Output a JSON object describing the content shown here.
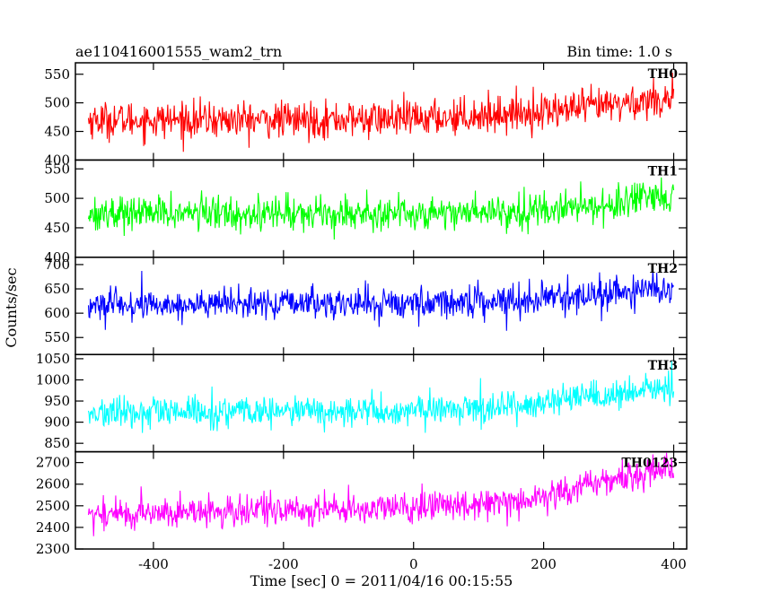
{
  "chart_data": {
    "type": "line",
    "title": "ae110416001555_wam2_trn",
    "subtitle": "Bin time: 1.0 s",
    "xlabel": "Time [sec] 0 = 2011/04/16 00:15:55",
    "ylabel": "Counts/sec",
    "xlim": [
      -520,
      420
    ],
    "x_ticks": [
      -400,
      -200,
      0,
      200,
      400
    ],
    "x_range_data": [
      -500,
      400
    ],
    "bin_time_s": 1.0,
    "grid": false,
    "panels": [
      {
        "name": "TH0",
        "color": "#ff0000",
        "ylim": [
          400,
          570
        ],
        "yticks": [
          400,
          450,
          500,
          550
        ],
        "trend": [
          [
            -500,
            470
          ],
          [
            -200,
            470
          ],
          [
            0,
            472
          ],
          [
            200,
            485
          ],
          [
            300,
            495
          ],
          [
            400,
            510
          ]
        ],
        "noise_amplitude": 35
      },
      {
        "name": "TH1",
        "color": "#00ff00",
        "ylim": [
          400,
          565
        ],
        "yticks": [
          400,
          450,
          500,
          550
        ],
        "trend": [
          [
            -500,
            475
          ],
          [
            -200,
            475
          ],
          [
            0,
            475
          ],
          [
            200,
            480
          ],
          [
            300,
            490
          ],
          [
            400,
            500
          ]
        ],
        "noise_amplitude": 32
      },
      {
        "name": "TH2",
        "color": "#0000ff",
        "ylim": [
          515,
          715
        ],
        "yticks": [
          550,
          600,
          650,
          700
        ],
        "trend": [
          [
            -500,
            615
          ],
          [
            -200,
            620
          ],
          [
            0,
            620
          ],
          [
            200,
            630
          ],
          [
            300,
            640
          ],
          [
            400,
            650
          ]
        ],
        "noise_amplitude": 35
      },
      {
        "name": "TH3",
        "color": "#00ffff",
        "ylim": [
          830,
          1060
        ],
        "yticks": [
          850,
          900,
          950,
          1000,
          1050
        ],
        "trend": [
          [
            -500,
            920
          ],
          [
            -200,
            925
          ],
          [
            0,
            925
          ],
          [
            200,
            945
          ],
          [
            300,
            960
          ],
          [
            400,
            985
          ]
        ],
        "noise_amplitude": 40
      },
      {
        "name": "TH0123",
        "color": "#ff00ff",
        "ylim": [
          2300,
          2750
        ],
        "yticks": [
          2300,
          2400,
          2500,
          2600,
          2700
        ],
        "trend": [
          [
            -500,
            2460
          ],
          [
            -200,
            2480
          ],
          [
            0,
            2490
          ],
          [
            200,
            2540
          ],
          [
            300,
            2620
          ],
          [
            400,
            2680
          ]
        ],
        "noise_amplitude": 80
      }
    ]
  }
}
